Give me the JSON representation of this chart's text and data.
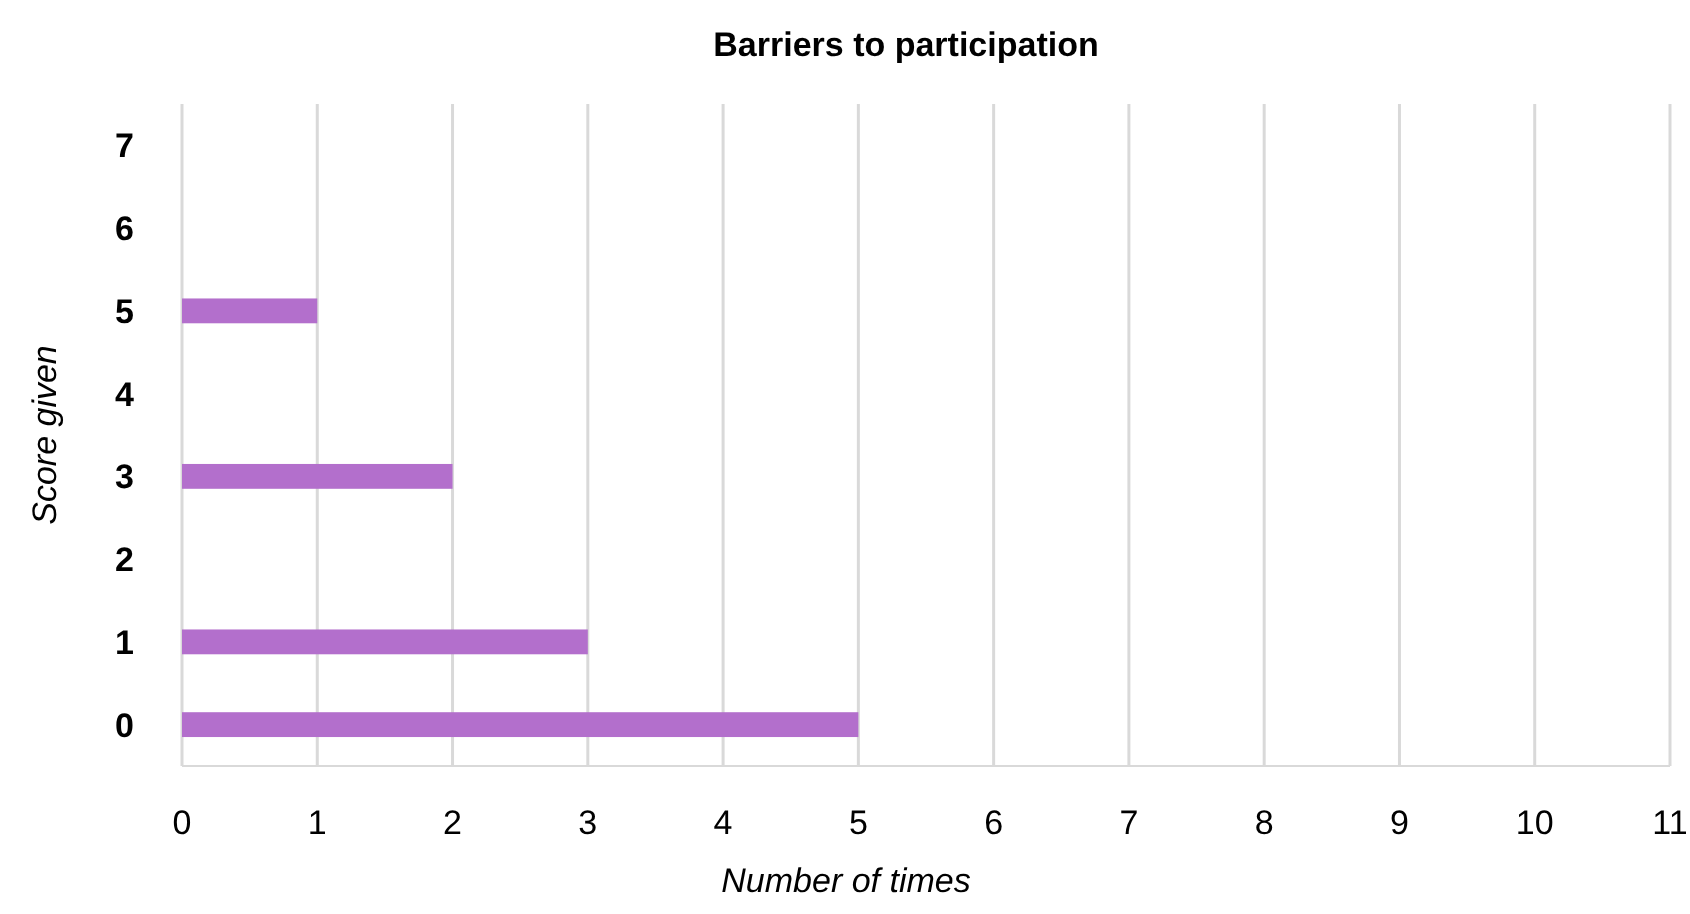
{
  "chart_data": {
    "type": "bar",
    "orientation": "horizontal",
    "title": "Barriers to participation",
    "xlabel": "Number of times",
    "ylabel": "Score given",
    "categories": [
      "7",
      "6",
      "5",
      "4",
      "3",
      "2",
      "1",
      "0"
    ],
    "values": [
      0,
      0,
      1,
      0,
      2,
      0,
      3,
      5
    ],
    "color": "#b36fcc",
    "xlim": [
      0,
      11
    ],
    "xticks": [
      0,
      1,
      2,
      3,
      4,
      5,
      6,
      7,
      8,
      9,
      10,
      11
    ],
    "grid": "x"
  }
}
